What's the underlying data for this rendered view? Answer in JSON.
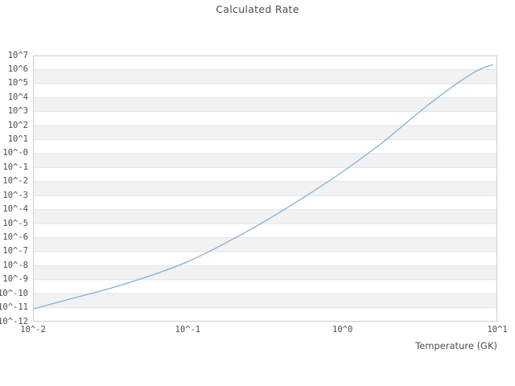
{
  "chart_data": {
    "type": "line",
    "title": "Calculated Rate",
    "xlabel": "Temperature (GK)",
    "ylabel": "",
    "x_scale": "log",
    "y_scale": "log",
    "xlim_exp": [
      -2,
      1
    ],
    "ylim_exp": [
      -12,
      7
    ],
    "grid": "horizontal-only",
    "legend": "none",
    "x_ticks": [
      {
        "exp": -2,
        "label": "10^-2"
      },
      {
        "exp": -1,
        "label": "10^-1"
      },
      {
        "exp": 0,
        "label": "10^0"
      },
      {
        "exp": 1,
        "label": "10^1"
      }
    ],
    "y_ticks": [
      {
        "exp": 7,
        "label": "10^7"
      },
      {
        "exp": 6,
        "label": "10^6"
      },
      {
        "exp": 5,
        "label": "10^5"
      },
      {
        "exp": 4,
        "label": "10^4"
      },
      {
        "exp": 3,
        "label": "10^3"
      },
      {
        "exp": 2,
        "label": "10^2"
      },
      {
        "exp": 1,
        "label": "10^1"
      },
      {
        "exp": 0,
        "label": "10^-0"
      },
      {
        "exp": -1,
        "label": "10^-1"
      },
      {
        "exp": -2,
        "label": "10^-2"
      },
      {
        "exp": -3,
        "label": "10^-3"
      },
      {
        "exp": -4,
        "label": "10^-4"
      },
      {
        "exp": -5,
        "label": "10^-5"
      },
      {
        "exp": -6,
        "label": "10^-6"
      },
      {
        "exp": -7,
        "label": "10^-7"
      },
      {
        "exp": -8,
        "label": "10^-8"
      },
      {
        "exp": -9,
        "label": "10^-9"
      },
      {
        "exp": -10,
        "label": "10^-10"
      },
      {
        "exp": -11,
        "label": "10^-11"
      },
      {
        "exp": -12,
        "label": "10^-12"
      }
    ],
    "series": [
      {
        "name": "calculated-rate",
        "points_log10": [
          [
            -2.0,
            -11.1
          ],
          [
            -1.75,
            -10.35
          ],
          [
            -1.5,
            -9.62
          ],
          [
            -1.25,
            -8.75
          ],
          [
            -1.0,
            -7.72
          ],
          [
            -0.75,
            -6.35
          ],
          [
            -0.5,
            -4.82
          ],
          [
            -0.25,
            -3.12
          ],
          [
            0.0,
            -1.3
          ],
          [
            0.25,
            0.72
          ],
          [
            0.5,
            3.0
          ],
          [
            0.7,
            4.7
          ],
          [
            0.85,
            5.8
          ],
          [
            0.93,
            6.2
          ],
          [
            0.97,
            6.33
          ]
        ]
      }
    ],
    "colors": {
      "line": "#7fb1de",
      "stripe": "#f2f2f2",
      "grid": "#e4e4e4",
      "border": "#cfcfcf",
      "text": "#4d4d4d",
      "background": "#ffffff"
    }
  }
}
